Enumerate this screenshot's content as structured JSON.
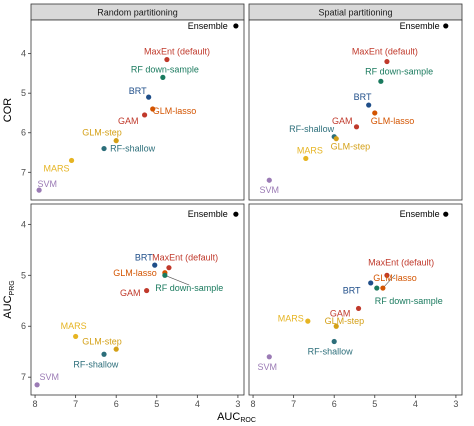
{
  "chart_data": {
    "type": "scatter",
    "xlabel": "AUC",
    "xlabel_sub": "ROC",
    "x_reversed": true,
    "y_reversed": true,
    "xlim": [
      8.1,
      2.85
    ],
    "x_ticks": [
      8,
      7,
      6,
      5,
      4,
      3
    ],
    "grid": false,
    "colors": {
      "Ensemble": "#000000",
      "MaxEnt (default)": "#c0392b",
      "RF down-sample": "#1a7a5e",
      "BRT": "#1f4e89",
      "GLM-lasso": "#d35400",
      "GAM": "#c0392b",
      "GLM-step": "#d4a017",
      "RF-shallow": "#2c6e7a",
      "MARS": "#e6b422",
      "SVM": "#9b7bb5"
    },
    "label_colors": {
      "Ensemble": "#000000",
      "MaxEnt (default)": "#c0392b",
      "RF down-sample": "#1a7a5e",
      "BRT": "#1f4e89",
      "GLM-lasso": "#d35400",
      "GAM": "#c0392b",
      "GLM-step": "#d4a017",
      "RF-shallow": "#2c6e7a",
      "MARS": "#e6b422",
      "SVM": "#9b7bb5"
    },
    "rows": [
      {
        "ylabel": "COR",
        "ylabel_sub": "",
        "ylim": [
          3.15,
          7.7
        ],
        "y_ticks": [
          4,
          5,
          6,
          7
        ]
      },
      {
        "ylabel": "AUC",
        "ylabel_sub": "PRG",
        "ylim": [
          3.6,
          7.35
        ],
        "y_ticks": [
          4,
          5,
          6,
          7
        ]
      }
    ],
    "columns": [
      "Random partitioning",
      "Spatial partitioning"
    ],
    "panels": [
      {
        "row": 0,
        "col": 0,
        "points": [
          {
            "name": "Ensemble",
            "x": 3.05,
            "y": 3.3,
            "label_anchor": "end",
            "lx": 3.25,
            "ly": 3.3
          },
          {
            "name": "MaxEnt (default)",
            "x": 4.75,
            "y": 4.15,
            "label_anchor": "middle",
            "lx": 4.5,
            "ly": 3.95
          },
          {
            "name": "RF down-sample",
            "x": 4.85,
            "y": 4.6,
            "label_anchor": "middle",
            "lx": 4.8,
            "ly": 4.4
          },
          {
            "name": "BRT",
            "x": 5.2,
            "y": 5.1,
            "label_anchor": "end",
            "lx": 5.25,
            "ly": 4.95
          },
          {
            "name": "GLM-lasso",
            "x": 5.1,
            "y": 5.4,
            "label_anchor": "start",
            "lx": 5.1,
            "ly": 5.45
          },
          {
            "name": "GAM",
            "x": 5.3,
            "y": 5.55,
            "label_anchor": "end",
            "lx": 5.45,
            "ly": 5.7
          },
          {
            "name": "GLM-step",
            "x": 6.0,
            "y": 6.2,
            "label_anchor": "middle",
            "lx": 6.35,
            "ly": 6.0
          },
          {
            "name": "RF-shallow",
            "x": 6.3,
            "y": 6.4,
            "label_anchor": "start",
            "lx": 6.15,
            "ly": 6.4
          },
          {
            "name": "MARS",
            "x": 7.1,
            "y": 6.7,
            "label_anchor": "end",
            "lx": 7.15,
            "ly": 6.9
          },
          {
            "name": "SVM",
            "x": 7.9,
            "y": 7.45,
            "label_anchor": "middle",
            "lx": 7.7,
            "ly": 7.3
          }
        ]
      },
      {
        "row": 0,
        "col": 1,
        "points": [
          {
            "name": "Ensemble",
            "x": 3.25,
            "y": 3.3,
            "label_anchor": "end",
            "lx": 3.4,
            "ly": 3.3
          },
          {
            "name": "MaxEnt (default)",
            "x": 4.7,
            "y": 4.2,
            "label_anchor": "middle",
            "lx": 4.75,
            "ly": 3.95
          },
          {
            "name": "RF down-sample",
            "x": 4.85,
            "y": 4.7,
            "label_anchor": "middle",
            "lx": 4.4,
            "ly": 4.45
          },
          {
            "name": "BRT",
            "x": 5.15,
            "y": 5.3,
            "label_anchor": "middle",
            "lx": 5.3,
            "ly": 5.1
          },
          {
            "name": "GLM-lasso",
            "x": 5.0,
            "y": 5.5,
            "label_anchor": "start",
            "lx": 5.1,
            "ly": 5.7
          },
          {
            "name": "GAM",
            "x": 5.45,
            "y": 5.85,
            "label_anchor": "end",
            "lx": 5.55,
            "ly": 5.7
          },
          {
            "name": "RF-shallow",
            "x": 6.0,
            "y": 6.1,
            "label_anchor": "end",
            "lx": 6.0,
            "ly": 5.9
          },
          {
            "name": "GLM-step",
            "x": 5.95,
            "y": 6.15,
            "label_anchor": "middle",
            "lx": 5.6,
            "ly": 6.35
          },
          {
            "name": "MARS",
            "x": 6.7,
            "y": 6.65,
            "label_anchor": "middle",
            "lx": 6.6,
            "ly": 6.45
          },
          {
            "name": "SVM",
            "x": 7.6,
            "y": 7.2,
            "label_anchor": "middle",
            "lx": 7.6,
            "ly": 7.45
          }
        ]
      },
      {
        "row": 1,
        "col": 0,
        "points": [
          {
            "name": "Ensemble",
            "x": 3.05,
            "y": 3.8,
            "label_anchor": "end",
            "lx": 3.25,
            "ly": 3.8
          },
          {
            "name": "MaxEnt (default)",
            "x": 4.7,
            "y": 4.85,
            "label_anchor": "middle",
            "lx": 4.3,
            "ly": 4.65
          },
          {
            "name": "BRT",
            "x": 5.05,
            "y": 4.8,
            "label_anchor": "end",
            "lx": 5.1,
            "ly": 4.65
          },
          {
            "name": "GLM-lasso",
            "x": 4.8,
            "y": 4.95,
            "label_anchor": "end",
            "lx": 5.0,
            "ly": 4.95
          },
          {
            "name": "RF down-sample",
            "x": 4.8,
            "y": 5.0,
            "label_anchor": "middle",
            "lx": 4.2,
            "ly": 5.25,
            "leader": true
          },
          {
            "name": "GAM",
            "x": 5.25,
            "y": 5.3,
            "label_anchor": "end",
            "lx": 5.4,
            "ly": 5.35
          },
          {
            "name": "MARS",
            "x": 7.0,
            "y": 6.2,
            "label_anchor": "middle",
            "lx": 7.05,
            "ly": 6.0
          },
          {
            "name": "GLM-step",
            "x": 6.0,
            "y": 6.45,
            "label_anchor": "middle",
            "lx": 6.35,
            "ly": 6.3
          },
          {
            "name": "RF-shallow",
            "x": 6.3,
            "y": 6.55,
            "label_anchor": "middle",
            "lx": 6.5,
            "ly": 6.75
          },
          {
            "name": "SVM",
            "x": 7.95,
            "y": 7.15,
            "label_anchor": "middle",
            "lx": 7.65,
            "ly": 7.0
          }
        ]
      },
      {
        "row": 1,
        "col": 1,
        "points": [
          {
            "name": "Ensemble",
            "x": 3.25,
            "y": 3.8,
            "label_anchor": "end",
            "lx": 3.4,
            "ly": 3.8
          },
          {
            "name": "MaxEnt (default)",
            "x": 4.7,
            "y": 5.0,
            "label_anchor": "middle",
            "lx": 4.35,
            "ly": 4.75
          },
          {
            "name": "GLM-lasso",
            "x": 4.8,
            "y": 5.25,
            "label_anchor": "middle",
            "lx": 4.5,
            "ly": 5.05,
            "leader": true
          },
          {
            "name": "BRT",
            "x": 5.1,
            "y": 5.15,
            "label_anchor": "end",
            "lx": 5.35,
            "ly": 5.3
          },
          {
            "name": "RF down-sample",
            "x": 4.95,
            "y": 5.25,
            "label_anchor": "start",
            "lx": 5.0,
            "ly": 5.5
          },
          {
            "name": "GAM",
            "x": 5.4,
            "y": 5.65,
            "label_anchor": "end",
            "lx": 5.6,
            "ly": 5.75
          },
          {
            "name": "MARS",
            "x": 6.65,
            "y": 5.9,
            "label_anchor": "end",
            "lx": 6.75,
            "ly": 5.85
          },
          {
            "name": "GLM-step",
            "x": 5.95,
            "y": 6.0,
            "label_anchor": "middle",
            "lx": 5.75,
            "ly": 5.9
          },
          {
            "name": "RF-shallow",
            "x": 6.0,
            "y": 6.3,
            "label_anchor": "middle",
            "lx": 6.1,
            "ly": 6.5
          },
          {
            "name": "SVM",
            "x": 7.6,
            "y": 6.6,
            "label_anchor": "middle",
            "lx": 7.65,
            "ly": 6.8
          }
        ]
      }
    ]
  }
}
